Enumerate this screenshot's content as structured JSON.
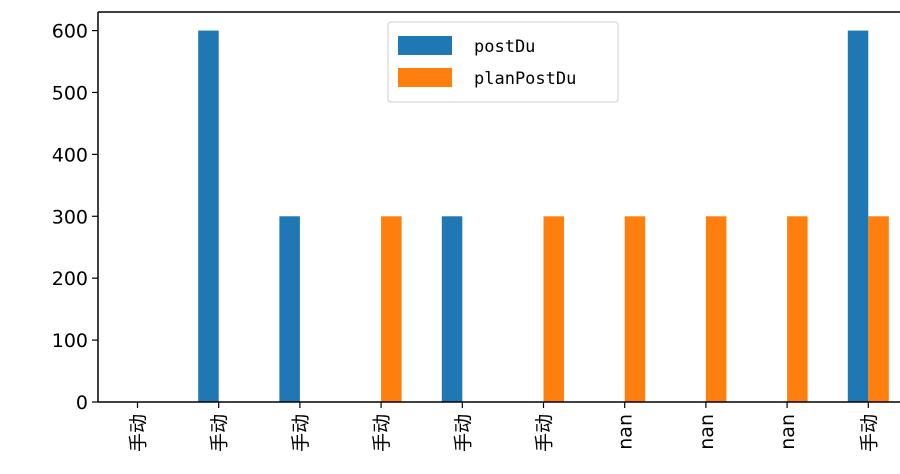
{
  "chart_data": {
    "type": "bar",
    "categories": [
      "手动",
      "手动",
      "手动",
      "手动",
      "手动",
      "手动",
      "nan",
      "nan",
      "nan",
      "手动"
    ],
    "series": [
      {
        "name": "postDu",
        "values": [
          0,
          600,
          300,
          0,
          300,
          0,
          0,
          0,
          0,
          600
        ],
        "color": "#1f77b4"
      },
      {
        "name": "planPostDu",
        "values": [
          0,
          0,
          0,
          300,
          0,
          300,
          300,
          300,
          300,
          300
        ],
        "color": "#ff7f0e"
      }
    ],
    "yticks": [
      "0",
      "100",
      "200",
      "300",
      "400",
      "500",
      "600"
    ],
    "ylim": [
      0,
      630
    ],
    "grid": false,
    "legend_position": "top-center"
  }
}
